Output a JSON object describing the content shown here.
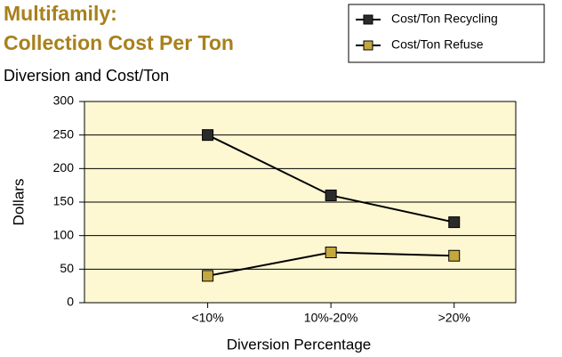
{
  "chart_data": {
    "type": "line",
    "title": [
      "Multifamily:",
      "Collection Cost Per Ton"
    ],
    "subtitle": "Diversion and Cost/Ton",
    "xlabel": "Diversion Percentage",
    "ylabel": "Dollars",
    "categories": [
      "<10%",
      "10%-20%",
      ">20%"
    ],
    "series": [
      {
        "name": "Cost/Ton Recycling",
        "color": "#2b2b2b",
        "values": [
          250,
          160,
          120
        ]
      },
      {
        "name": "Cost/Ton Refuse",
        "color": "#c2a83e",
        "values": [
          40,
          75,
          70
        ]
      }
    ],
    "line_color": "#000000",
    "ylim": [
      0,
      300
    ],
    "yticks": [
      0,
      50,
      100,
      150,
      200,
      250,
      300
    ],
    "grid": true,
    "legend": "upper right",
    "background": "#fdf7d2"
  }
}
